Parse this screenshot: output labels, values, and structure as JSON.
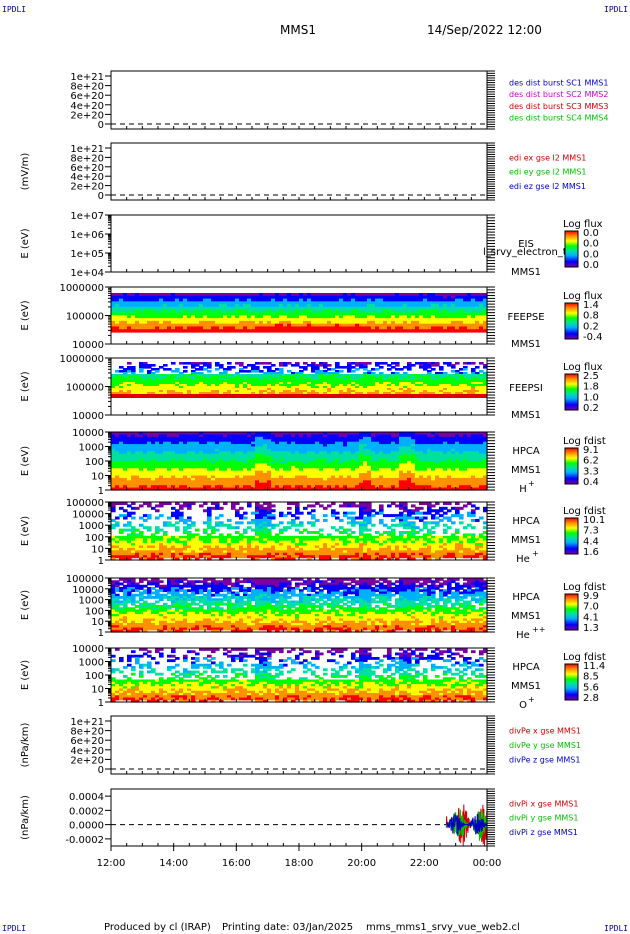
{
  "corner_marks": {
    "tl": "IPDLI",
    "tr": "IPDLI",
    "bl": "IPDLI",
    "br": "IPDLI"
  },
  "header": {
    "spacecraft": "MMS1",
    "datetime": "14/Sep/2022 12:00"
  },
  "footer": {
    "producer": "Produced by cl (IRAP)",
    "printing": "Printing date: 03/Jan/2025",
    "script": "mms_mms1_srvy_vue_web2.cl"
  },
  "colorbar_palette": [
    "#7a00a0",
    "#0000ff",
    "#00b0ff",
    "#00e0a0",
    "#00ff00",
    "#ffff00",
    "#ff9000",
    "#ff0000"
  ],
  "chart_data": [
    {
      "type": "line",
      "panel": "des_dist",
      "ylabel": "",
      "yticks": [
        "1e+21",
        "8e+20",
        "6e+20",
        "4e+20",
        "2e+20",
        "0"
      ],
      "legend": [
        {
          "text": "des dist burst SC1 MMS1",
          "color": "#0000c0"
        },
        {
          "text": "des dist burst SC2 MMS2",
          "color": "#d000d0"
        },
        {
          "text": "des dist burst SC3 MMS3",
          "color": "#d00000"
        },
        {
          "text": "des dist burst SC4 MMS4",
          "color": "#00c000"
        }
      ],
      "zero_line": true
    },
    {
      "type": "line",
      "panel": "edi_e",
      "ylabel": "(mV/m)",
      "yticks": [
        "1e+21",
        "8e+20",
        "6e+20",
        "4e+20",
        "2e+20",
        "0"
      ],
      "legend": [
        {
          "text": "edi ex gse l2 MMS1",
          "color": "#d00000"
        },
        {
          "text": "edi ey gse l2 MMS1",
          "color": "#00c000"
        },
        {
          "text": "edi ez gse l2 MMS1",
          "color": "#0000c0"
        }
      ],
      "zero_line": true
    },
    {
      "type": "heatmap",
      "panel": "eis",
      "ylabel": "E (eV)",
      "yticks": [
        "1e+07",
        "1e+06",
        "1e+05",
        "1e+04"
      ],
      "instrument": [
        "EIS",
        "MMS1"
      ],
      "overlay_text": "l_srvy_electron_to",
      "cbar_title": "Log flux",
      "cbar_ticks": [
        "0.0",
        "0.0",
        "0.0",
        "0.0"
      ],
      "empty": true
    },
    {
      "type": "heatmap",
      "panel": "feepse",
      "ylabel": "E (eV)",
      "yticks": [
        "1000000",
        "100000",
        "10000"
      ],
      "instrument": [
        "FEEPSE",
        "MMS1"
      ],
      "cbar_title": "Log flux",
      "cbar_ticks": [
        "1.4",
        "0.8",
        "0.2",
        "-0.4"
      ]
    },
    {
      "type": "heatmap",
      "panel": "feepsi",
      "ylabel": "E (eV)",
      "yticks": [
        "1000000",
        "100000",
        "10000"
      ],
      "instrument": [
        "FEEPSI",
        "MMS1"
      ],
      "cbar_title": "Log flux",
      "cbar_ticks": [
        "2.5",
        "1.8",
        "1.0",
        "0.2"
      ]
    },
    {
      "type": "heatmap",
      "panel": "hpca_h",
      "ylabel": "E (eV)",
      "yticks": [
        "10000",
        "1000",
        "100",
        "10",
        "1"
      ],
      "instrument": [
        "HPCA",
        "MMS1"
      ],
      "species": "H",
      "charge": "+",
      "cbar_title": "Log fdist",
      "cbar_ticks": [
        "9.1",
        "6.2",
        "3.3",
        "0.4"
      ]
    },
    {
      "type": "heatmap",
      "panel": "hpca_he1",
      "ylabel": "E (eV)",
      "yticks": [
        "100000",
        "10000",
        "1000",
        "100",
        "10",
        "1"
      ],
      "instrument": [
        "HPCA",
        "MMS1"
      ],
      "species": "He",
      "charge": "+",
      "cbar_title": "Log fdist",
      "cbar_ticks": [
        "10.1",
        "7.3",
        "4.4",
        "1.6"
      ]
    },
    {
      "type": "heatmap",
      "panel": "hpca_he2",
      "ylabel": "E (eV)",
      "yticks": [
        "100000",
        "10000",
        "1000",
        "100",
        "10",
        "1"
      ],
      "instrument": [
        "HPCA",
        "MMS1"
      ],
      "species": "He",
      "charge": "++",
      "cbar_title": "Log fdist",
      "cbar_ticks": [
        "9.9",
        "7.0",
        "4.1",
        "1.3"
      ]
    },
    {
      "type": "heatmap",
      "panel": "hpca_o",
      "ylabel": "E (eV)",
      "yticks": [
        "10000",
        "1000",
        "100",
        "10",
        "1"
      ],
      "instrument": [
        "HPCA",
        "MMS1"
      ],
      "species": "O",
      "charge": "+",
      "cbar_title": "Log fdist",
      "cbar_ticks": [
        "11.4",
        "8.5",
        "5.6",
        "2.8"
      ]
    },
    {
      "type": "line",
      "panel": "divpe",
      "ylabel": "(nPa/km)",
      "yticks": [
        "1e+21",
        "8e+20",
        "6e+20",
        "4e+20",
        "2e+20",
        "0"
      ],
      "legend": [
        {
          "text": "divPe x gse MMS1",
          "color": "#d00000"
        },
        {
          "text": "divPe y gse MMS1",
          "color": "#00c000"
        },
        {
          "text": "divPe z gse MMS1",
          "color": "#0000c0"
        }
      ],
      "zero_line": true
    },
    {
      "type": "line",
      "panel": "divpi",
      "ylabel": "(nPa/km)",
      "yticks": [
        "0.0004",
        "0.0002",
        "0.0000",
        "-0.0002"
      ],
      "ylim": [
        -0.0003,
        0.0005
      ],
      "legend": [
        {
          "text": "divPi x gse MMS1",
          "color": "#d00000"
        },
        {
          "text": "divPi y gse MMS1",
          "color": "#00c000"
        },
        {
          "text": "divPi z gse MMS1",
          "color": "#0000c0"
        }
      ],
      "zero_line": true,
      "activity_start_hour": 22.7
    }
  ],
  "x_axis": {
    "tick_labels": [
      "12:00",
      "14:00",
      "16:00",
      "18:00",
      "20:00",
      "22:00",
      "00:00"
    ],
    "range_hours": [
      12,
      24
    ]
  }
}
